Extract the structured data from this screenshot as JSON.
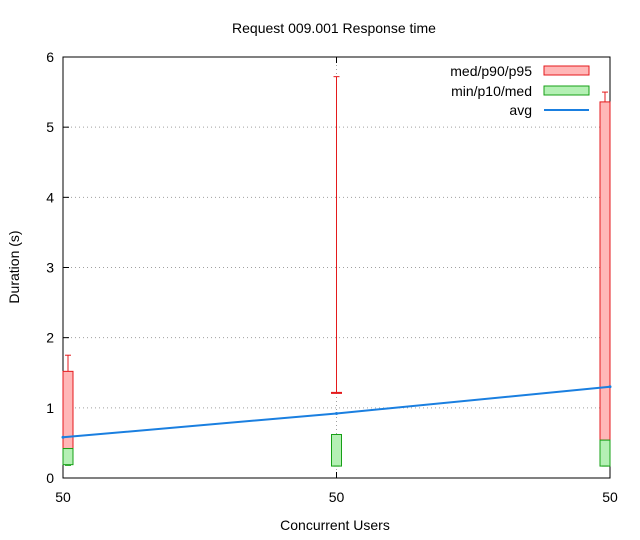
{
  "chart_data": {
    "type": "box",
    "title": "Request 009.001 Response time",
    "xlabel": "Concurrent Users",
    "ylabel": "Duration (s)",
    "ylim": [
      0,
      6
    ],
    "yticks": [
      "0",
      "1",
      "2",
      "3",
      "4",
      "5",
      "6"
    ],
    "grid": true,
    "legend_position": "top-right",
    "categories": [
      "50",
      "50",
      "50"
    ],
    "series": [
      {
        "name": "med/p90/p95",
        "color": "#ffb7b7",
        "edge": "#e41a1c",
        "low": [
          0.42,
          1.22,
          0.54
        ],
        "high": [
          1.52,
          1.22,
          5.36
        ],
        "whisker": [
          1.75,
          5.72,
          5.5
        ]
      },
      {
        "name": "min/p10/med",
        "color": "#b4f0b4",
        "edge": "#16a016",
        "low": [
          0.19,
          0.17,
          0.17
        ],
        "high": [
          0.42,
          0.62,
          0.54
        ],
        "whisker_low": [
          0.18,
          0.17,
          0.17
        ]
      },
      {
        "name": "avg",
        "color": "#1a7fe0",
        "values": [
          0.58,
          0.92,
          1.3
        ]
      }
    ]
  }
}
